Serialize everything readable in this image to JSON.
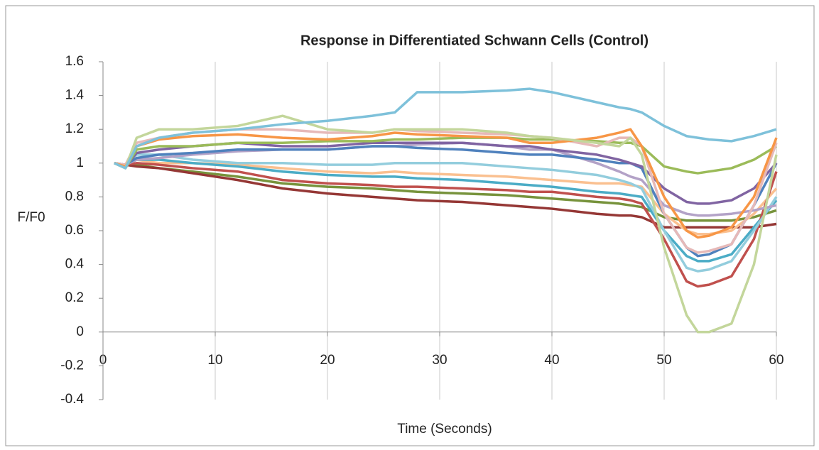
{
  "chart_data": {
    "type": "line",
    "title": "Response in Differentiated Schwann Cells (Control)",
    "x_label": "Time (Seconds)",
    "y_label": "F/F0",
    "xlim": [
      0,
      60
    ],
    "xticks": [
      0,
      10,
      20,
      30,
      40,
      50,
      60
    ],
    "ylim": [
      -0.4,
      1.6
    ],
    "yticks": [
      -0.4,
      -0.2,
      0,
      0.2,
      0.4,
      0.6,
      0.8,
      1,
      1.2,
      1.4,
      1.6
    ],
    "grid": "x",
    "x": [
      1,
      2,
      3,
      5,
      8,
      12,
      16,
      20,
      24,
      26,
      28,
      32,
      36,
      38,
      40,
      44,
      46,
      47,
      48,
      50,
      52,
      53,
      54,
      56,
      58,
      60
    ],
    "series": [
      {
        "color": "#77933c",
        "values": [
          1,
          0.99,
          0.99,
          0.97,
          0.95,
          0.92,
          0.88,
          0.86,
          0.85,
          0.84,
          0.83,
          0.82,
          0.81,
          0.8,
          0.79,
          0.77,
          0.76,
          0.75,
          0.74,
          0.68,
          0.66,
          0.66,
          0.66,
          0.66,
          0.68,
          0.72
        ]
      },
      {
        "color": "#953735",
        "values": [
          1,
          0.99,
          0.98,
          0.97,
          0.94,
          0.9,
          0.85,
          0.82,
          0.8,
          0.79,
          0.78,
          0.77,
          0.75,
          0.74,
          0.73,
          0.7,
          0.69,
          0.69,
          0.68,
          0.62,
          0.62,
          0.62,
          0.62,
          0.62,
          0.62,
          0.64
        ]
      },
      {
        "color": "#fac090",
        "values": [
          1,
          0.99,
          1.02,
          1.0,
          1.0,
          0.99,
          0.97,
          0.95,
          0.94,
          0.95,
          0.94,
          0.93,
          0.92,
          0.91,
          0.9,
          0.88,
          0.88,
          0.87,
          0.86,
          0.7,
          0.6,
          0.58,
          0.58,
          0.6,
          0.7,
          0.85
        ]
      },
      {
        "color": "#4bacc6",
        "values": [
          1,
          0.99,
          1.02,
          1.02,
          1.0,
          0.98,
          0.95,
          0.93,
          0.92,
          0.92,
          0.91,
          0.9,
          0.88,
          0.87,
          0.86,
          0.83,
          0.82,
          0.81,
          0.8,
          0.6,
          0.45,
          0.42,
          0.42,
          0.46,
          0.62,
          0.78
        ]
      },
      {
        "color": "#c0504d",
        "values": [
          1,
          0.99,
          1.0,
          0.99,
          0.97,
          0.95,
          0.9,
          0.88,
          0.87,
          0.86,
          0.86,
          0.85,
          0.84,
          0.83,
          0.83,
          0.8,
          0.79,
          0.78,
          0.76,
          0.55,
          0.3,
          0.27,
          0.28,
          0.33,
          0.55,
          0.95
        ]
      },
      {
        "color": "#93cddd",
        "values": [
          1,
          0.99,
          1.05,
          1.05,
          1.02,
          1.0,
          1.0,
          0.99,
          0.99,
          1.0,
          1.0,
          1.0,
          0.98,
          0.97,
          0.96,
          0.93,
          0.9,
          0.88,
          0.85,
          0.6,
          0.38,
          0.36,
          0.37,
          0.42,
          0.6,
          0.8
        ]
      },
      {
        "color": "#b3a2c7",
        "values": [
          1,
          0.99,
          1.02,
          1.03,
          1.05,
          1.07,
          1.08,
          1.08,
          1.1,
          1.1,
          1.11,
          1.12,
          1.1,
          1.08,
          1.08,
          1.0,
          0.95,
          0.92,
          0.9,
          0.75,
          0.7,
          0.69,
          0.69,
          0.7,
          0.72,
          0.75
        ]
      },
      {
        "color": "#4f81bd",
        "values": [
          1,
          0.99,
          1.03,
          1.05,
          1.06,
          1.08,
          1.08,
          1.08,
          1.1,
          1.1,
          1.09,
          1.08,
          1.06,
          1.05,
          1.05,
          1.02,
          1.0,
          1.0,
          0.97,
          0.7,
          0.5,
          0.45,
          0.46,
          0.52,
          0.75,
          1.0
        ]
      },
      {
        "color": "#8064a2",
        "values": [
          1,
          0.98,
          1.06,
          1.08,
          1.1,
          1.12,
          1.1,
          1.1,
          1.12,
          1.12,
          1.12,
          1.12,
          1.1,
          1.1,
          1.08,
          1.05,
          1.02,
          1.0,
          0.98,
          0.85,
          0.77,
          0.76,
          0.76,
          0.78,
          0.85,
          1.0
        ]
      },
      {
        "color": "#9bbb59",
        "values": [
          1,
          0.97,
          1.08,
          1.1,
          1.1,
          1.12,
          1.12,
          1.13,
          1.13,
          1.14,
          1.14,
          1.15,
          1.15,
          1.14,
          1.14,
          1.13,
          1.12,
          1.12,
          1.1,
          0.98,
          0.95,
          0.94,
          0.95,
          0.97,
          1.02,
          1.1
        ]
      },
      {
        "color": "#e6b9b8",
        "values": [
          1,
          0.99,
          1.12,
          1.15,
          1.18,
          1.2,
          1.2,
          1.18,
          1.18,
          1.2,
          1.19,
          1.18,
          1.17,
          1.16,
          1.15,
          1.1,
          1.15,
          1.15,
          1.1,
          0.7,
          0.5,
          0.47,
          0.48,
          0.52,
          0.75,
          1.12
        ]
      },
      {
        "color": "#f79646",
        "values": [
          1,
          0.98,
          1.1,
          1.14,
          1.16,
          1.17,
          1.15,
          1.14,
          1.16,
          1.18,
          1.17,
          1.16,
          1.15,
          1.12,
          1.12,
          1.15,
          1.18,
          1.2,
          1.1,
          0.8,
          0.6,
          0.56,
          0.57,
          0.62,
          0.8,
          1.15
        ]
      },
      {
        "color": "#c3d69b",
        "values": [
          1,
          0.97,
          1.15,
          1.2,
          1.2,
          1.22,
          1.28,
          1.2,
          1.18,
          1.2,
          1.2,
          1.2,
          1.18,
          1.16,
          1.15,
          1.12,
          1.1,
          1.15,
          1.05,
          0.5,
          0.1,
          0.0,
          0.0,
          0.05,
          0.4,
          1.05
        ]
      },
      {
        "color": "#7ec1da",
        "values": [
          1,
          0.97,
          1.1,
          1.15,
          1.18,
          1.2,
          1.23,
          1.25,
          1.28,
          1.3,
          1.42,
          1.42,
          1.43,
          1.44,
          1.42,
          1.36,
          1.33,
          1.32,
          1.3,
          1.22,
          1.16,
          1.15,
          1.14,
          1.13,
          1.16,
          1.2
        ]
      }
    ]
  }
}
